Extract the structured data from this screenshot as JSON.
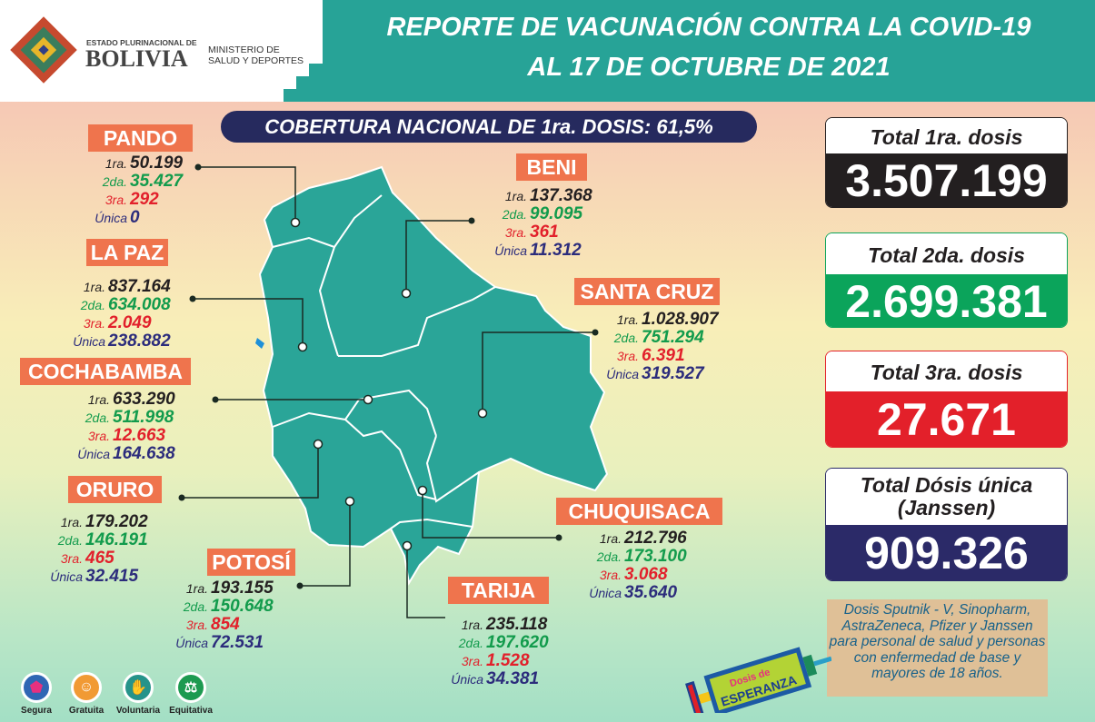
{
  "header": {
    "logo_top": "ESTADO PLURINACIONAL DE",
    "logo_main": "BOLIVIA",
    "ministry_line1": "MINISTERIO DE",
    "ministry_line2": "SALUD Y DEPORTES",
    "title_line1": "REPORTE DE VACUNACIÓN CONTRA LA COVID-19",
    "title_line2": "AL 17 DE OCTUBRE DE 2021"
  },
  "banner": "COBERTURA NACIONAL DE 1ra. DOSIS: 61,5%",
  "prefixes": {
    "d1": "1ra.",
    "d2": "2da.",
    "d3": "3ra.",
    "du": "Única"
  },
  "departments": [
    {
      "name": "PANDO",
      "d1": "50.199",
      "d2": "35.427",
      "d3": "292",
      "du": "0"
    },
    {
      "name": "BENI",
      "d1": "137.368",
      "d2": "99.095",
      "d3": "361",
      "du": "11.312"
    },
    {
      "name": "LA PAZ",
      "d1": "837.164",
      "d2": "634.008",
      "d3": "2.049",
      "du": "238.882"
    },
    {
      "name": "SANTA CRUZ",
      "d1": "1.028.907",
      "d2": "751.294",
      "d3": "6.391",
      "du": "319.527"
    },
    {
      "name": "COCHABAMBA",
      "d1": "633.290",
      "d2": "511.998",
      "d3": "12.663",
      "du": "164.638"
    },
    {
      "name": "ORURO",
      "d1": "179.202",
      "d2": "146.191",
      "d3": "465",
      "du": "32.415"
    },
    {
      "name": "CHUQUISACA",
      "d1": "212.796",
      "d2": "173.100",
      "d3": "3.068",
      "du": "35.640"
    },
    {
      "name": "POTOSÍ",
      "d1": "193.155",
      "d2": "150.648",
      "d3": "854",
      "du": "72.531"
    },
    {
      "name": "TARIJA",
      "d1": "235.118",
      "d2": "197.620",
      "d3": "1.528",
      "du": "34.381"
    }
  ],
  "totals": [
    {
      "label": "Total 1ra. dosis",
      "value": "3.507.199",
      "color": "#231f20"
    },
    {
      "label": "Total 2da. dosis",
      "value": "2.699.381",
      "color": "#0ba45b"
    },
    {
      "label": "Total 3ra. dosis",
      "value": "27.671",
      "color": "#e3202a"
    },
    {
      "label": "Total Dósis única",
      "label2": "(Janssen)",
      "value": "909.326",
      "color": "#2b2a68"
    }
  ],
  "note": "Dosis Sputnik - V, Sinopharm, AstraZeneca, Pfizer y Janssen para personal de salud y personas con enfermedad de base y mayores de 18 años.",
  "syringe": {
    "text1": "Dosis de",
    "text2": "ESPERANZA"
  },
  "principles": [
    {
      "label": "Segura",
      "icon": "shield-check-icon",
      "color": "#e6307f"
    },
    {
      "label": "Gratuita",
      "icon": "smiley-icon",
      "color": "#f19a34"
    },
    {
      "label": "Voluntaria",
      "icon": "raised-hand-icon",
      "color": "#26938a"
    },
    {
      "label": "Equitativa",
      "icon": "scales-icon",
      "color": "#1d9a50"
    }
  ],
  "colors": {
    "map": "#2aa598",
    "label": "#ef744d",
    "header": "#27a397"
  }
}
